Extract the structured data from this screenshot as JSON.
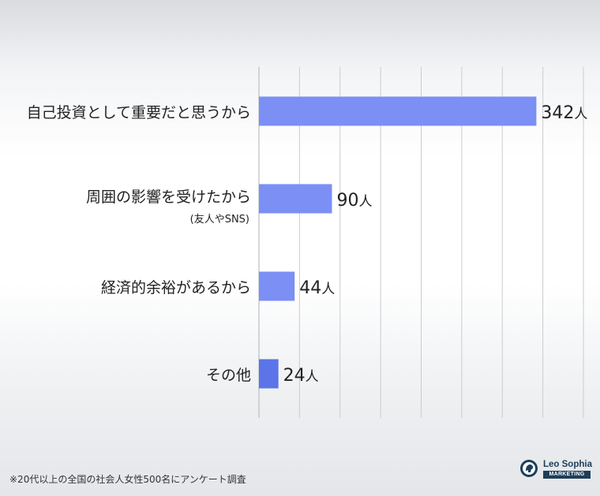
{
  "chart_data": {
    "type": "bar",
    "orientation": "horizontal",
    "categories": [
      "自己投資として重要だと思うから",
      "周囲の影響を受けたから",
      "経済的余裕があるから",
      "その他"
    ],
    "category_sublabels": [
      "",
      "(友人やSNS)",
      "",
      ""
    ],
    "values": [
      342,
      90,
      44,
      24
    ],
    "value_labels": [
      "342",
      "90",
      "44",
      "24"
    ],
    "unit": "人",
    "xlim": [
      0,
      400
    ],
    "grid": true,
    "legend": "none",
    "bar_colors": [
      "#7b8ff5",
      "#7b8ff5",
      "#7b8ff5",
      "#5b74e8"
    ]
  },
  "footnote": "※20代以上の全国の社会人女性500名にアンケート調査",
  "logo": {
    "name": "Leo Sophia",
    "subtitle": "MARKETING"
  },
  "colors": {
    "bar": "#7b8ff5",
    "bar_other": "#5b74e8",
    "grid": "#c9ccd2",
    "logo": "#1d3e5a"
  }
}
